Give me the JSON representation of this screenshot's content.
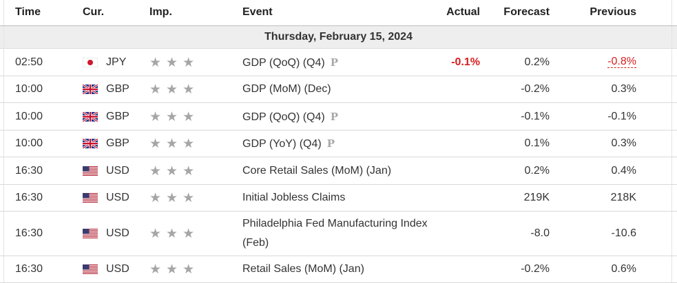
{
  "header": {
    "time": "Time",
    "currency": "Cur.",
    "importance": "Imp.",
    "event": "Event",
    "actual": "Actual",
    "forecast": "Forecast",
    "previous": "Previous"
  },
  "date_label": "Thursday, February 15, 2024",
  "colors": {
    "negative": "#d91e1e",
    "star": "#a6a6a6",
    "date_bg": "#eeeeee"
  },
  "rows": [
    {
      "time": "02:50",
      "flag": "jp-flag-icon",
      "currency": "JPY",
      "importance": 3,
      "event": "GDP (QoQ) (Q4)",
      "preliminary": "P",
      "actual": "-0.1%",
      "forecast": "0.2%",
      "previous": "-0.8%"
    },
    {
      "time": "10:00",
      "flag": "uk-flag-icon",
      "currency": "GBP",
      "importance": 3,
      "event": "GDP (MoM) (Dec)",
      "actual": "",
      "forecast": "-0.2%",
      "previous": "0.3%"
    },
    {
      "time": "10:00",
      "flag": "uk-flag-icon",
      "currency": "GBP",
      "importance": 3,
      "event": "GDP (QoQ) (Q4)",
      "preliminary": "P",
      "actual": "",
      "forecast": "-0.1%",
      "previous": "-0.1%"
    },
    {
      "time": "10:00",
      "flag": "uk-flag-icon",
      "currency": "GBP",
      "importance": 3,
      "event": "GDP (YoY) (Q4)",
      "preliminary": "P",
      "actual": "",
      "forecast": "0.1%",
      "previous": "0.3%"
    },
    {
      "time": "16:30",
      "flag": "us-flag-icon",
      "currency": "USD",
      "importance": 3,
      "event": "Core Retail Sales (MoM) (Jan)",
      "actual": "",
      "forecast": "0.2%",
      "previous": "0.4%"
    },
    {
      "time": "16:30",
      "flag": "us-flag-icon",
      "currency": "USD",
      "importance": 3,
      "event": "Initial Jobless Claims",
      "actual": "",
      "forecast": "219K",
      "previous": "218K"
    },
    {
      "time": "16:30",
      "flag": "us-flag-icon",
      "currency": "USD",
      "importance": 3,
      "event": "Philadelphia Fed Manufacturing Index (Feb)",
      "actual": "",
      "forecast": "-8.0",
      "previous": "-10.6"
    },
    {
      "time": "16:30",
      "flag": "us-flag-icon",
      "currency": "USD",
      "importance": 3,
      "event": "Retail Sales (MoM) (Jan)",
      "actual": "",
      "forecast": "-0.2%",
      "previous": "0.6%"
    }
  ]
}
